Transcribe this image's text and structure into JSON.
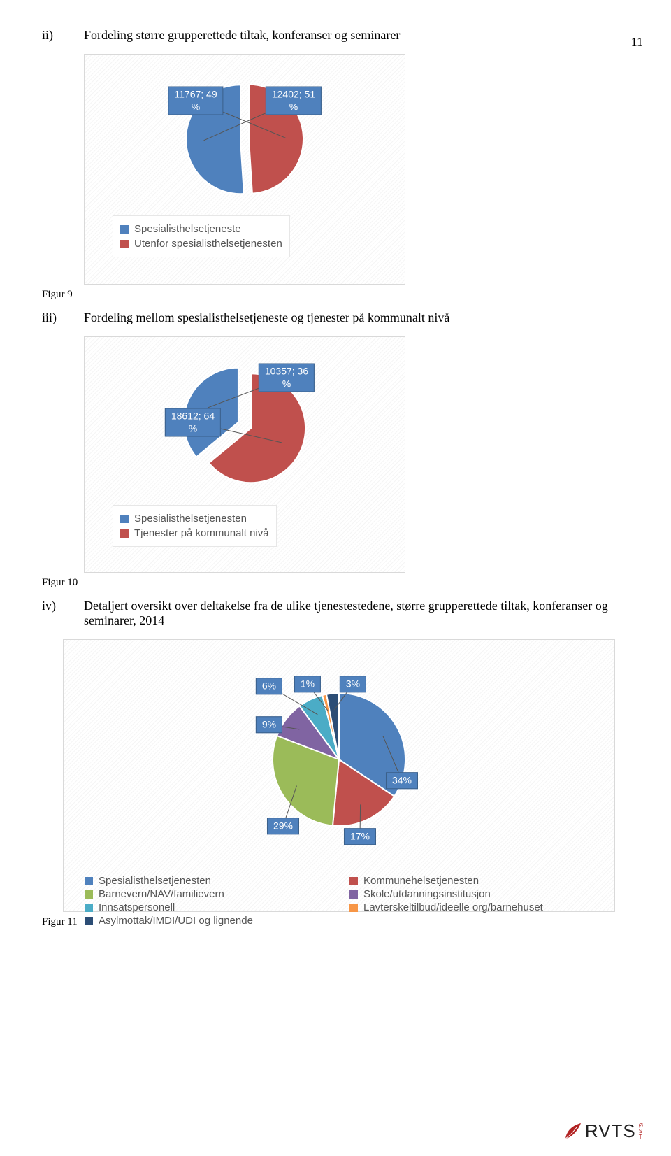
{
  "page_number": "11",
  "section_ii": {
    "roman": "ii)",
    "heading": "Fordeling større grupperettede tiltak, konferanser og seminarer"
  },
  "chart9": {
    "type": "pie",
    "slices": [
      {
        "label": "11767; 49\n%",
        "value": 49,
        "color": "#c0504d"
      },
      {
        "label": "12402; 51\n%",
        "value": 51,
        "color": "#4f81bd"
      }
    ],
    "label_bg": "#4f81bd",
    "gap_deg": 10,
    "legend": [
      {
        "color": "#4f81bd",
        "text": "Spesialisthelsetjeneste"
      },
      {
        "color": "#c0504d",
        "text": "Utenfor spesialisthelsetjenesten"
      }
    ],
    "figure_label": "Figur 9"
  },
  "section_iii": {
    "roman": "iii)",
    "heading": "Fordeling mellom spesialisthelsetjeneste og tjenester på kommunalt nivå"
  },
  "chart10": {
    "type": "pie",
    "slices": [
      {
        "label": "18612; 64\n%",
        "value": 64,
        "color": "#c0504d"
      },
      {
        "label": "10357; 36\n%",
        "value": 36,
        "color": "#4f81bd"
      }
    ],
    "gap_deg": 24,
    "legend": [
      {
        "color": "#4f81bd",
        "text": "Spesialisthelsetjenesten"
      },
      {
        "color": "#c0504d",
        "text": "Tjenester på kommunalt nivå"
      }
    ],
    "figure_label": "Figur 10"
  },
  "section_iv": {
    "roman": "iv)",
    "heading": "Detaljert oversikt over deltakelse fra de ulike tjenestestedene, større grupperettede tiltak, konferanser og seminarer, 2014"
  },
  "chart11": {
    "type": "pie",
    "slices": [
      {
        "label": "34%",
        "value": 34,
        "color": "#4f81bd"
      },
      {
        "label": "17%",
        "value": 17,
        "color": "#c0504d"
      },
      {
        "label": "29%",
        "value": 29,
        "color": "#9bbb59"
      },
      {
        "label": "9%",
        "value": 9,
        "color": "#8064a2"
      },
      {
        "label": "6%",
        "value": 6,
        "color": "#4bacc6"
      },
      {
        "label": "1%",
        "value": 1,
        "color": "#f79646"
      },
      {
        "label": "3%",
        "value": 3,
        "color": "#2c4d75"
      }
    ],
    "legend": [
      {
        "color": "#4f81bd",
        "text": "Spesialisthelsetjenesten"
      },
      {
        "color": "#c0504d",
        "text": "Kommunehelsetjenesten"
      },
      {
        "color": "#9bbb59",
        "text": "Barnevern/NAV/familievern"
      },
      {
        "color": "#8064a2",
        "text": "Skole/utdanningsinstitusjon"
      },
      {
        "color": "#4bacc6",
        "text": "Innsatspersonell"
      },
      {
        "color": "#f79646",
        "text": "Lavterskeltilbud/ideelle org/barnehuset"
      },
      {
        "color": "#2c4d75",
        "text": "Asylmottak/IMDI/UDI og lignende"
      }
    ],
    "figure_label": "Figur 11"
  },
  "logo": {
    "text": "RVTS",
    "suffix": "ØST"
  },
  "colors": {
    "label_box_bg": "#4f81bd",
    "label_box_border": "#3a5f8a",
    "slice_border": "#ffffff"
  }
}
